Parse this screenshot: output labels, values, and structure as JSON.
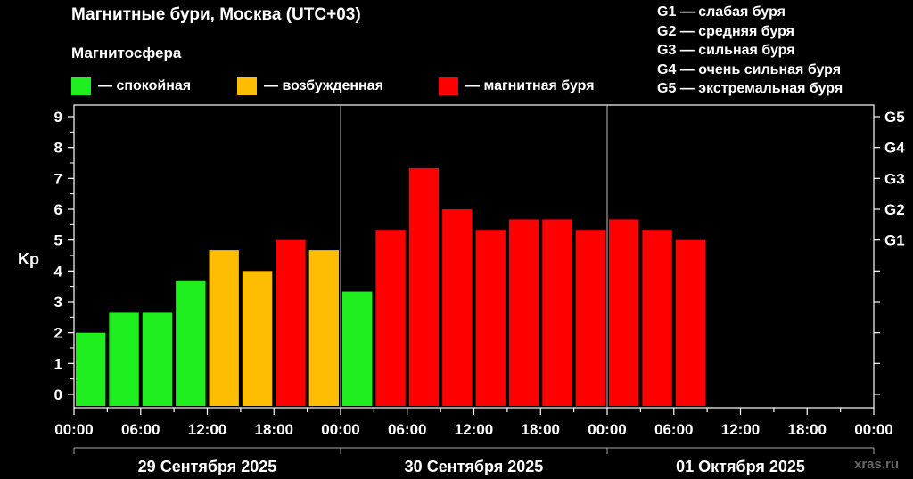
{
  "title": "Магнитные бури, Москва (UTC+03)",
  "legend": {
    "title": "Магнитосфера",
    "items": [
      {
        "label": "— спокойная",
        "color": "#1fef1f"
      },
      {
        "label": "— возбужденная",
        "color": "#ffbd00"
      },
      {
        "label": "— магнитная буря",
        "color": "#ff0000"
      }
    ]
  },
  "g_scale": [
    "G1 — слабая буря",
    "G2 — средняя буря",
    "G3 — сильная буря",
    "G4 — очень сильная буря",
    "G5 — экстремальная буря"
  ],
  "watermark": "xras.ru",
  "chart_data": {
    "type": "bar",
    "ylabel": "Kp",
    "ylim": [
      0,
      9
    ],
    "yticks": [
      0,
      1,
      2,
      3,
      4,
      5,
      6,
      7,
      8,
      9
    ],
    "right_ticks": [
      {
        "label": "G1",
        "value": 5
      },
      {
        "label": "G2",
        "value": 6
      },
      {
        "label": "G3",
        "value": 7
      },
      {
        "label": "G4",
        "value": 8
      },
      {
        "label": "G5",
        "value": 9
      }
    ],
    "xtick_labels": [
      "00:00",
      "06:00",
      "12:00",
      "18:00",
      "00:00",
      "06:00",
      "12:00",
      "18:00",
      "00:00",
      "06:00",
      "12:00",
      "18:00",
      "00:00"
    ],
    "days": [
      "29 Сентября 2025",
      "30 Сентября 2025",
      "01 Октября 2025"
    ],
    "grid": "vertical day separators",
    "values": [
      2.0,
      2.67,
      2.67,
      3.67,
      4.67,
      4.0,
      5.0,
      4.67,
      3.33,
      5.33,
      7.33,
      6.0,
      5.33,
      5.67,
      5.67,
      5.33,
      5.67,
      5.33,
      5.0
    ],
    "colors": [
      "#1fef1f",
      "#1fef1f",
      "#1fef1f",
      "#1fef1f",
      "#ffbd00",
      "#ffbd00",
      "#ff0000",
      "#ffbd00",
      "#1fef1f",
      "#ff0000",
      "#ff0000",
      "#ff0000",
      "#ff0000",
      "#ff0000",
      "#ff0000",
      "#ff0000",
      "#ff0000",
      "#ff0000",
      "#ff0000"
    ]
  }
}
